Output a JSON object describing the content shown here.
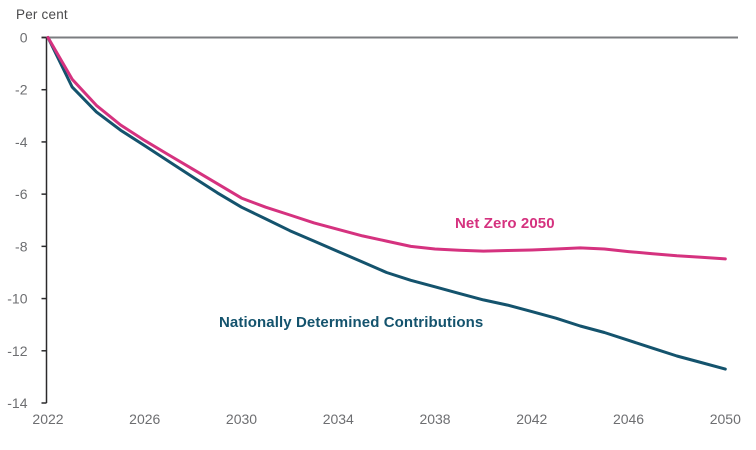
{
  "chart_data": {
    "type": "line",
    "title": "",
    "xlabel": "",
    "ylabel": "Per cent",
    "xlim": [
      2022,
      2050
    ],
    "ylim": [
      0,
      -14
    ],
    "xticks": [
      "2022",
      "2026",
      "2030",
      "2034",
      "2038",
      "2042",
      "2046",
      "2050"
    ],
    "yticks": [
      0,
      -2,
      -4,
      -6,
      -8,
      -10,
      -12,
      -14
    ],
    "ytick_labels": [
      "0",
      "-2",
      "-4",
      "-6",
      "-8",
      "-10",
      "-12",
      "-14"
    ],
    "grid": "zero-line-only",
    "legend": "inline-colored-labels",
    "x": [
      2022,
      2023,
      2024,
      2025,
      2026,
      2027,
      2028,
      2029,
      2030,
      2031,
      2032,
      2033,
      2034,
      2035,
      2036,
      2037,
      2038,
      2039,
      2040,
      2041,
      2042,
      2043,
      2044,
      2045,
      2046,
      2047,
      2048,
      2049,
      2050
    ],
    "series": [
      {
        "name": "Nationally Determined Contributions",
        "color": "#14536d",
        "values": [
          0,
          -1.9,
          -2.85,
          -3.55,
          -4.15,
          -4.75,
          -5.35,
          -5.95,
          -6.5,
          -6.95,
          -7.4,
          -7.8,
          -8.2,
          -8.6,
          -9.0,
          -9.3,
          -9.55,
          -9.8,
          -10.05,
          -10.25,
          -10.5,
          -10.75,
          -11.05,
          -11.3,
          -11.6,
          -11.9,
          -12.2,
          -12.45,
          -12.7
        ]
      },
      {
        "name": "Net Zero 2050",
        "color": "#d5327f",
        "values": [
          0,
          -1.6,
          -2.6,
          -3.35,
          -3.95,
          -4.5,
          -5.05,
          -5.6,
          -6.15,
          -6.5,
          -6.8,
          -7.1,
          -7.35,
          -7.6,
          -7.8,
          -8.0,
          -8.1,
          -8.15,
          -8.18,
          -8.16,
          -8.14,
          -8.1,
          -8.06,
          -8.1,
          -8.2,
          -8.28,
          -8.36,
          -8.42,
          -8.48
        ]
      }
    ],
    "axis_colors": {
      "axis_line": "#2b2a2c",
      "tick_labels": "#6d6e71",
      "zero_line": "#7b7d80",
      "axis_title": "#4a4a4c"
    }
  }
}
